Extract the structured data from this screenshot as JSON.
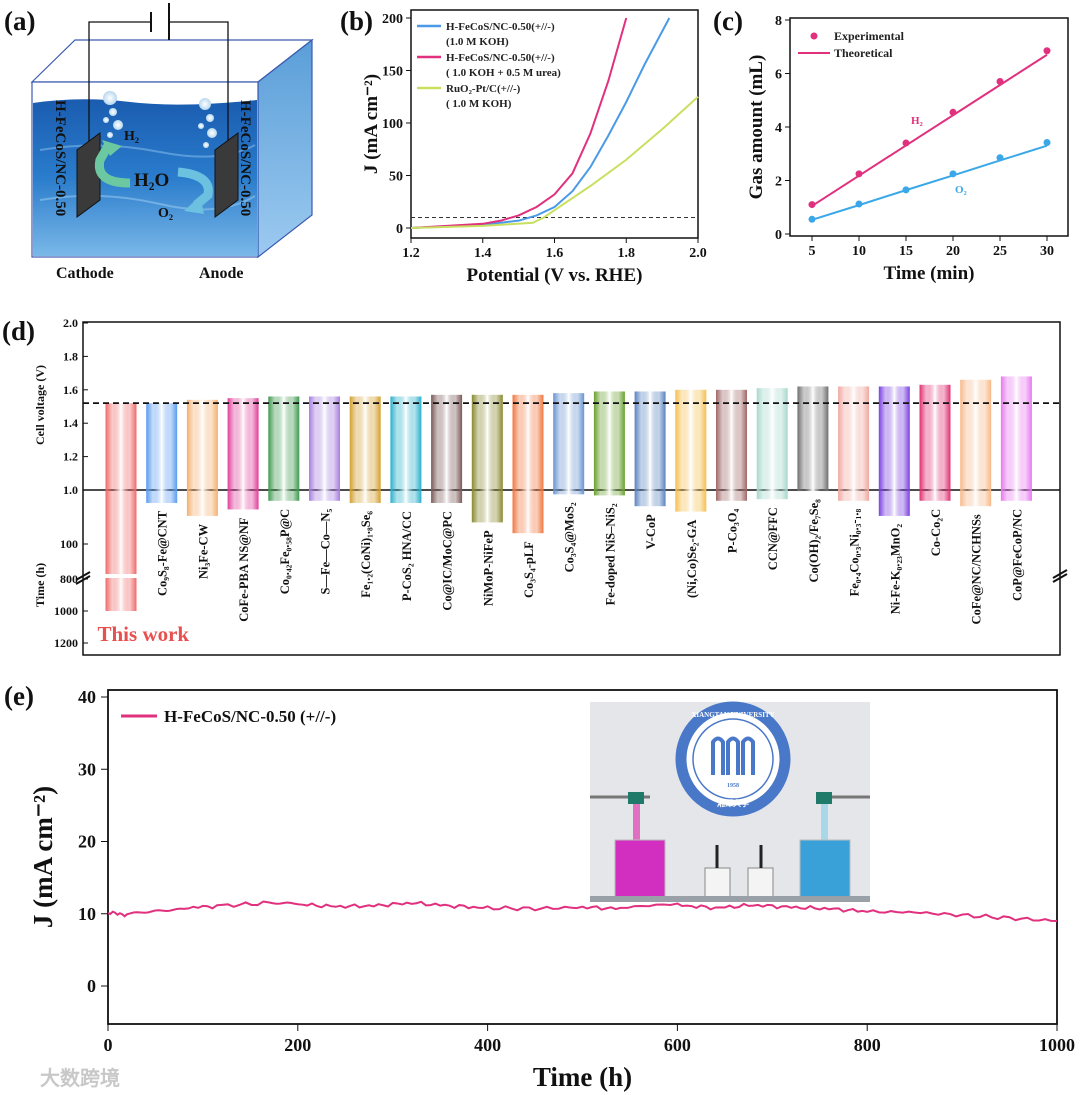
{
  "panels": {
    "a": "(a)",
    "b": "(b)",
    "c": "(c)",
    "d": "(d)",
    "e": "(e)"
  },
  "schematic": {
    "electrode_label": "H-FeCoS/NC-0.50",
    "h2": "H₂",
    "h2o": "H₂O",
    "o2": "O₂",
    "cathode": "Cathode",
    "anode": "Anode",
    "water_color": "#2a78c8"
  },
  "chart_data": [
    {
      "panel": "b",
      "type": "line",
      "xlabel": "Potential (V vs. RHE)",
      "ylabel": "J (mA cm⁻²)",
      "xlim": [
        1.2,
        2.0
      ],
      "ylim": [
        -10,
        200
      ],
      "xticks": [
        "1.2",
        "1.4",
        "1.6",
        "1.8",
        "2.0"
      ],
      "yticks": [
        "0",
        "50",
        "100",
        "150",
        "200"
      ],
      "reference_line": 10,
      "series": [
        {
          "name": "H-FeCoS/NC-0.50(+//-)",
          "sub": "(1.0 M KOH)",
          "color": "#4a9ae8",
          "points": [
            [
              1.2,
              0
            ],
            [
              1.3,
              1.5
            ],
            [
              1.4,
              3
            ],
            [
              1.5,
              7
            ],
            [
              1.55,
              12
            ],
            [
              1.6,
              20
            ],
            [
              1.65,
              35
            ],
            [
              1.7,
              58
            ],
            [
              1.75,
              88
            ],
            [
              1.8,
              120
            ],
            [
              1.85,
              155
            ],
            [
              1.92,
              200
            ]
          ]
        },
        {
          "name": "H-FeCoS/NC-0.50(+//-)",
          "sub": "( 1.0 KOH +  0.5 M urea)",
          "color": "#e0307e",
          "points": [
            [
              1.2,
              0
            ],
            [
              1.3,
              2
            ],
            [
              1.4,
              4
            ],
            [
              1.45,
              7
            ],
            [
              1.5,
              12
            ],
            [
              1.55,
              20
            ],
            [
              1.6,
              32
            ],
            [
              1.65,
              52
            ],
            [
              1.7,
              90
            ],
            [
              1.75,
              140
            ],
            [
              1.8,
              200
            ]
          ]
        },
        {
          "name": "RuO₂-Pt/C(+//-)",
          "sub": "( 1.0 M KOH)",
          "color": "#c8e060",
          "points": [
            [
              1.2,
              0
            ],
            [
              1.4,
              2
            ],
            [
              1.54,
              5
            ],
            [
              1.57,
              10
            ],
            [
              1.6,
              17
            ],
            [
              1.7,
              40
            ],
            [
              1.8,
              65
            ],
            [
              1.9,
              94
            ],
            [
              2.0,
              125
            ]
          ]
        }
      ]
    },
    {
      "panel": "c",
      "type": "scatter",
      "xlabel": "Time (min)",
      "ylabel": "Gas amount (mL)",
      "xlim": [
        2,
        33
      ],
      "ylim": [
        0,
        8
      ],
      "xticks": [
        "5",
        "10",
        "15",
        "20",
        "25",
        "30"
      ],
      "yticks": [
        "0",
        "2",
        "4",
        "6",
        "8"
      ],
      "legend": [
        "Experimental",
        "Theoretical"
      ],
      "x": [
        5,
        10,
        15,
        20,
        25,
        30
      ],
      "series": [
        {
          "name": "H₂",
          "color": "#e0307e",
          "experimental": [
            1.1,
            2.25,
            3.4,
            4.55,
            5.7,
            6.85
          ],
          "theoretical": [
            1.05,
            2.18,
            3.31,
            4.44,
            5.57,
            6.7
          ]
        },
        {
          "name": "O₂",
          "color": "#3aa8e8",
          "experimental": [
            0.55,
            1.12,
            1.65,
            2.25,
            2.85,
            3.42
          ],
          "theoretical": [
            0.53,
            1.08,
            1.64,
            2.19,
            2.75,
            3.3
          ]
        }
      ]
    },
    {
      "panel": "d",
      "type": "bar",
      "ylabel_top": "Cell voltage (V)",
      "ylabel_bottom": "Time (h)",
      "voltage_ticks": [
        "2.0",
        "1.8",
        "1.6",
        "1.4",
        "1.2",
        "1.0"
      ],
      "time_ticks": [
        "100",
        "800",
        "1000",
        "1200"
      ],
      "reference_voltage": 1.52,
      "highlight_label": "This work",
      "bars": [
        {
          "label": "This work",
          "voltage": 1.52,
          "time": 1000,
          "color": "#f06a6a"
        },
        {
          "label": "Co₉S₈-Fe@CNT",
          "voltage": 1.52,
          "time": 24,
          "color": "#5b9cf0"
        },
        {
          "label": "Ni₃Fe-CW",
          "voltage": 1.54,
          "time": 48,
          "color": "#f5b070"
        },
        {
          "label": "CoFe-PBA NS@NF",
          "voltage": 1.55,
          "time": 36,
          "color": "#e0409a"
        },
        {
          "label": "Co₀.₄₂Fe₀.₅₈P@C",
          "voltage": 1.56,
          "time": 20,
          "color": "#3f9a4f"
        },
        {
          "label": "S—Fe—Co—N₅",
          "voltage": 1.56,
          "time": 20,
          "color": "#a77ee0"
        },
        {
          "label": "Fe₁.₂(CoNi)₁.₈Se₆",
          "voltage": 1.56,
          "time": 24,
          "color": "#d4a030"
        },
        {
          "label": "P-CoS₂ HNA/CC",
          "voltage": 1.56,
          "time": 24,
          "color": "#2ab0cc"
        },
        {
          "label": "Co@IC/MoC@PC",
          "voltage": 1.57,
          "time": 24,
          "color": "#7a5a58"
        },
        {
          "label": "NiMoP-NiFeP",
          "voltage": 1.57,
          "time": 60,
          "color": "#8a8a30"
        },
        {
          "label": "Co₃S₄-pLF",
          "voltage": 1.57,
          "time": 80,
          "color": "#f07840"
        },
        {
          "label": "Co₃S₄@MoS₂",
          "voltage": 1.58,
          "time": 8,
          "color": "#6a94d0"
        },
        {
          "label": "Fe-doped NiS–NiS₂",
          "voltage": 1.59,
          "time": 10,
          "color": "#6aa030"
        },
        {
          "label": "V-CoP",
          "voltage": 1.59,
          "time": 30,
          "color": "#5a84c0"
        },
        {
          "label": "(Ni,Co)Se₂-GA",
          "voltage": 1.6,
          "time": 40,
          "color": "#f5c050"
        },
        {
          "label": "P-Co₃O₄",
          "voltage": 1.6,
          "time": 20,
          "color": "#a06868"
        },
        {
          "label": "CCN@FFC",
          "voltage": 1.61,
          "time": 17,
          "color": "#a8d8cc"
        },
        {
          "label": "Co(OH)₂/Fe₇Se₈",
          "voltage": 1.62,
          "time": 2,
          "color": "#707070"
        },
        {
          "label": "Fe₀.₄Co₀.₃Ni₀.₃-₁.₈",
          "voltage": 1.62,
          "time": 20,
          "color": "#f0a8a0"
        },
        {
          "label": "Ni-Fe-K₀.₂₃MnO₂",
          "voltage": 1.62,
          "time": 48,
          "color": "#7a40e0"
        },
        {
          "label": "Co-Co₂C",
          "voltage": 1.63,
          "time": 20,
          "color": "#e03070"
        },
        {
          "label": "CoFe@NC/NCHNSs",
          "voltage": 1.66,
          "time": 30,
          "color": "#f8b888"
        },
        {
          "label": "CoP@FeCoP/NC",
          "voltage": 1.68,
          "time": 20,
          "color": "#e878f0"
        }
      ]
    },
    {
      "panel": "e",
      "type": "line",
      "xlabel": "Time (h)",
      "ylabel": "J (mA cm⁻²)",
      "xlim": [
        0,
        1000
      ],
      "ylim": [
        -5.2,
        41
      ],
      "xticks": [
        "0",
        "200",
        "400",
        "600",
        "800",
        "1000"
      ],
      "yticks": [
        "0",
        "10",
        "20",
        "30",
        "40"
      ],
      "legend": "H-FeCoS/NC-0.50 (+//-)",
      "color": "#e0307e",
      "points": [
        [
          0,
          10.1
        ],
        [
          20,
          9.9
        ],
        [
          50,
          10.4
        ],
        [
          80,
          10.8
        ],
        [
          120,
          11.1
        ],
        [
          170,
          11.5
        ],
        [
          200,
          11.3
        ],
        [
          240,
          11.0
        ],
        [
          280,
          11.1
        ],
        [
          320,
          11.5
        ],
        [
          360,
          11.1
        ],
        [
          400,
          10.8
        ],
        [
          450,
          10.7
        ],
        [
          500,
          10.9
        ],
        [
          540,
          10.7
        ],
        [
          600,
          11.2
        ],
        [
          640,
          10.8
        ],
        [
          680,
          11.2
        ],
        [
          720,
          10.9
        ],
        [
          760,
          10.7
        ],
        [
          800,
          10.3
        ],
        [
          850,
          10.2
        ],
        [
          900,
          9.8
        ],
        [
          950,
          9.4
        ],
        [
          1000,
          9.0
        ]
      ]
    }
  ],
  "photo": {
    "seal_text": "XIANGTAN UNIVERSITY",
    "seal_year": "1958",
    "seal_chinese": "湘潭大学"
  },
  "watermark": "大数跨境"
}
